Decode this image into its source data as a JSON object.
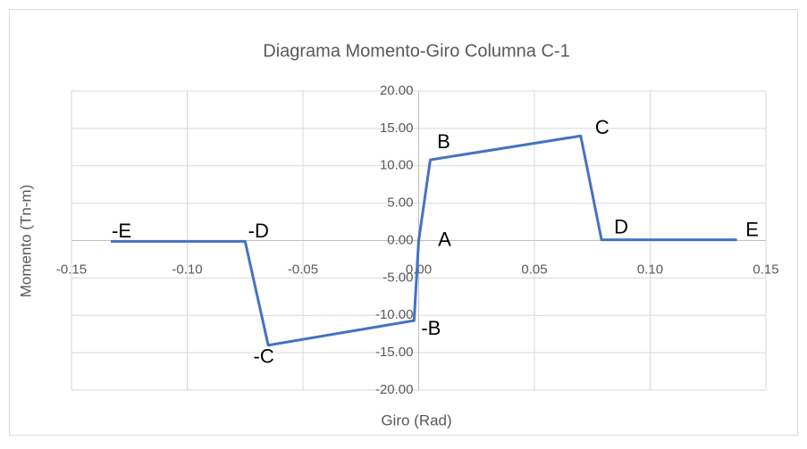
{
  "chart_data": {
    "type": "line",
    "title": "Diagrama Momento-Giro Columna C-1",
    "x_label": "Giro (Rad)",
    "y_label": "Momento (Tn-m)",
    "series": [
      {
        "color": "#4472c4",
        "x": [
          -0.133,
          -0.075,
          -0.065,
          -0.002,
          0,
          0.005,
          0.07,
          0.079,
          0.1375
        ],
        "values": [
          -0.1,
          -0.1,
          -14,
          -10.7,
          0,
          10.8,
          14,
          0.1,
          0.1
        ],
        "point_labels": [
          "-E",
          "-D",
          "-C",
          "-B",
          "A",
          "B",
          "C",
          "D",
          "E"
        ]
      }
    ],
    "xlim": [
      -0.15,
      0.15
    ],
    "xticks": [
      {
        "value": -0.15,
        "label": "-0.15"
      },
      {
        "value": -0.1,
        "label": "-0.10"
      },
      {
        "value": -0.05,
        "label": "-0.05"
      },
      {
        "value": 0,
        "label": "0.00"
      },
      {
        "value": 0.05,
        "label": "0.05"
      },
      {
        "value": 0.1,
        "label": "0.10"
      },
      {
        "value": 0.15,
        "label": "0.15"
      }
    ],
    "ylim": [
      -20,
      20
    ],
    "yticks": [
      {
        "value": -20,
        "label": "-20.00"
      },
      {
        "value": -15,
        "label": "-15.00"
      },
      {
        "value": -10,
        "label": "-10.00"
      },
      {
        "value": -5,
        "label": "-5.00"
      },
      {
        "value": 0,
        "label": "0.00"
      },
      {
        "value": 5,
        "label": "5.00"
      },
      {
        "value": 10,
        "label": "10.00"
      },
      {
        "value": 15,
        "label": "15.00"
      },
      {
        "value": 20,
        "label": "20.00"
      }
    ],
    "grid": true
  }
}
